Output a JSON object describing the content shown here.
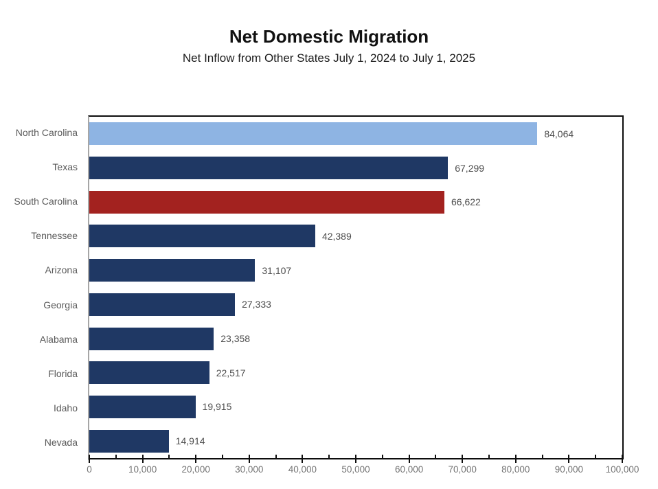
{
  "title": "Net Domestic Migration",
  "subtitle": "Net Inflow from Other States July 1, 2024 to July 1, 2025",
  "chart_data": {
    "type": "bar",
    "orientation": "horizontal",
    "title": "Net Domestic Migration",
    "subtitle": "Net Inflow from Other States July 1, 2024 to July 1, 2025",
    "categories": [
      "North Carolina",
      "Texas",
      "South Carolina",
      "Tennessee",
      "Arizona",
      "Georgia",
      "Alabama",
      "Florida",
      "Idaho",
      "Nevada"
    ],
    "values": [
      84064,
      67299,
      66622,
      42389,
      31107,
      27333,
      23358,
      22517,
      19915,
      14914
    ],
    "value_labels": [
      "84,064",
      "67,299",
      "66,622",
      "42,389",
      "31,107",
      "27,333",
      "23,358",
      "22,517",
      "19,915",
      "14,914"
    ],
    "bar_colors": [
      "#8EB4E3",
      "#1F3864",
      "#A3221F",
      "#1F3864",
      "#1F3864",
      "#1F3864",
      "#1F3864",
      "#1F3864",
      "#1F3864",
      "#1F3864"
    ],
    "xlim": [
      0,
      100000
    ],
    "x_major_tick_interval": 10000,
    "x_minor_tick_interval": 5000,
    "x_tick_labels": [
      "0",
      "10,000",
      "20,000",
      "30,000",
      "40,000",
      "50,000",
      "60,000",
      "70,000",
      "80,000",
      "90,000",
      "100,000"
    ],
    "grid": false,
    "legend": false,
    "colors": {
      "default_bar": "#1F3864",
      "top_highlight_bar": "#8EB4E3",
      "south_carolina_highlight_bar": "#A3221F",
      "category_text": "#595959",
      "value_text": "#4d4d4d",
      "axis_tick_text": "#737373",
      "plot_border": "#0d0d0d",
      "value_axis_line": "#a6a6a6"
    }
  }
}
